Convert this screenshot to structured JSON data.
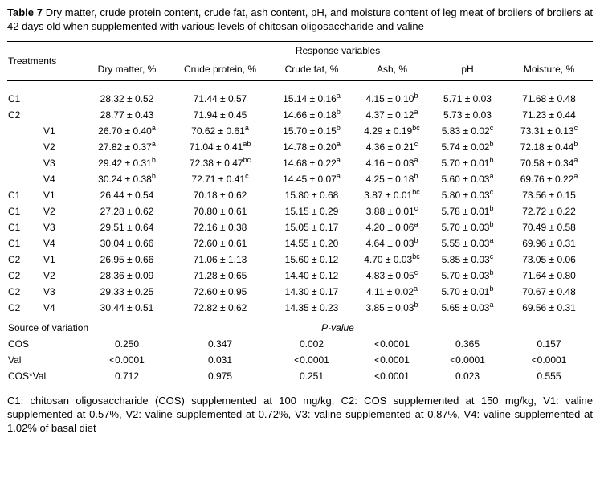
{
  "title": {
    "label": "Table 7",
    "text": " Dry matter, crude protein content, crude fat, ash content, pH, and moisture content of leg meat of broilers of broilers at 42 days old when supplemented with various levels of chitosan oligosaccharide and valine"
  },
  "table": {
    "treatments_header": "Treatments",
    "response_header": "Response variables",
    "columns": [
      "Dry matter, %",
      "Crude protein, %",
      "Crude fat, %",
      "Ash, %",
      "pH",
      "Moisture, %"
    ],
    "rows": [
      {
        "cos": "C1",
        "val": "",
        "cells": [
          "28.32 ± 0.52",
          "71.44 ± 0.57",
          "15.14 ± 0.16^a",
          "4.15 ± 0.10^b",
          "5.71 ± 0.03",
          "71.68 ± 0.48"
        ]
      },
      {
        "cos": "C2",
        "val": "",
        "cells": [
          "28.77 ± 0.43",
          "71.94 ± 0.45",
          "14.66 ± 0.18^b",
          "4.37 ± 0.12^a",
          "5.73 ± 0.03",
          "71.23 ± 0.44"
        ]
      },
      {
        "cos": "",
        "val": "V1",
        "cells": [
          "26.70 ± 0.40^a",
          "70.62 ± 0.61^a",
          "15.70 ± 0.15^b",
          "4.29 ± 0.19^bc",
          "5.83 ± 0.02^c",
          "73.31 ± 0.13^c"
        ]
      },
      {
        "cos": "",
        "val": "V2",
        "cells": [
          "27.82 ± 0.37^a",
          "71.04 ± 0.41^ab",
          "14.78 ± 0.20^a",
          "4.36 ± 0.21^c",
          "5.74 ± 0.02^b",
          "72.18 ± 0.44^b"
        ]
      },
      {
        "cos": "",
        "val": "V3",
        "cells": [
          "29.42 ± 0.31^b",
          "72.38 ± 0.47^bc",
          "14.68 ± 0.22^a",
          "4.16 ± 0.03^a",
          "5.70 ± 0.01^b",
          "70.58 ± 0.34^a"
        ]
      },
      {
        "cos": "",
        "val": "V4",
        "cells": [
          "30.24 ± 0.38^b",
          "72.71 ± 0.41^c",
          "14.45 ± 0.07^a",
          "4.25 ± 0.18^b",
          "5.60 ± 0.03^a",
          "69.76 ± 0.22^a"
        ]
      },
      {
        "cos": "C1",
        "val": "V1",
        "cells": [
          "26.44 ± 0.54",
          "70.18 ± 0.62",
          "15.80 ± 0.68",
          "3.87 ± 0.01^bc",
          "5.80 ± 0.03^c",
          "73.56 ± 0.15"
        ]
      },
      {
        "cos": "C1",
        "val": "V2",
        "cells": [
          "27.28 ± 0.62",
          "70.80 ± 0.61",
          "15.15 ± 0.29",
          "3.88 ± 0.01^c",
          "5.78 ± 0.01^b",
          "72.72 ± 0.22"
        ]
      },
      {
        "cos": "C1",
        "val": "V3",
        "cells": [
          "29.51 ± 0.64",
          "72.16 ± 0.38",
          "15.05 ± 0.17",
          "4.20 ± 0.06^a",
          "5.70 ± 0.03^b",
          "70.49 ± 0.58"
        ]
      },
      {
        "cos": "C1",
        "val": "V4",
        "cells": [
          "30.04 ± 0.66",
          "72.60 ± 0.61",
          "14.55 ± 0.20",
          "4.64 ± 0.03^b",
          "5.55 ± 0.03^a",
          "69.96 ± 0.31"
        ]
      },
      {
        "cos": "C2",
        "val": "V1",
        "cells": [
          "26.95 ± 0.66",
          "71.06 ± 1.13",
          "15.60 ± 0.12",
          "4.70 ± 0.03^bc",
          "5.85 ± 0.03^c",
          "73.05 ± 0.06"
        ]
      },
      {
        "cos": "C2",
        "val": "V2",
        "cells": [
          "28.36 ± 0.09",
          "71.28 ± 0.65",
          "14.40 ± 0.12",
          "4.83 ± 0.05^c",
          "5.70 ± 0.03^b",
          "71.64 ± 0.80"
        ]
      },
      {
        "cos": "C2",
        "val": "V3",
        "cells": [
          "29.33 ± 0.25",
          "72.60 ± 0.95",
          "14.30 ± 0.17",
          "4.11 ± 0.02^a",
          "5.70 ± 0.01^b",
          "70.67 ± 0.48"
        ]
      },
      {
        "cos": "C2",
        "val": "V4",
        "cells": [
          "30.44 ± 0.51",
          "72.82 ± 0.62",
          "14.35 ± 0.23",
          "3.85 ± 0.03^b",
          "5.65 ± 0.03^a",
          "69.56 ± 0.31"
        ]
      }
    ],
    "source_of_variation": {
      "label": "Source of variation",
      "pvalue_label": "P-value",
      "rows": [
        {
          "label": "COS",
          "cells": [
            "0.250",
            "0.347",
            "0.002",
            "<0.0001",
            "0.365",
            "0.157"
          ]
        },
        {
          "label": "Val",
          "cells": [
            "<0.0001",
            "0.031",
            "<0.0001",
            "<0.0001",
            "<0.0001",
            "<0.0001"
          ]
        },
        {
          "label": "COS*Val",
          "cells": [
            "0.712",
            "0.975",
            "0.251",
            "<0.0001",
            "0.023",
            "0.555"
          ]
        }
      ]
    }
  },
  "footnote": "C1: chitosan oligosaccharide (COS) supplemented at 100 mg/kg, C2: COS supplemented at 150 mg/kg, V1: valine supplemented at 0.57%, V2: valine supplemented at 0.72%, V3: valine supplemented at 0.87%, V4: valine supplemented at 1.02% of basal diet"
}
